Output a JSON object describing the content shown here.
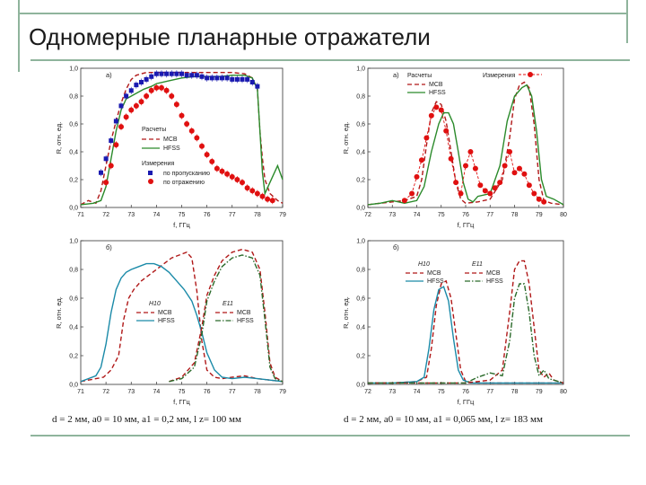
{
  "slide": {
    "title": "Одномерные планарные отражатели",
    "caption_left": "d = 2 мм, a0 = 10 мм, a1 = 0,2 мм, l z= 100 мм",
    "caption_right": "d = 2 мм, a0 = 10 мм, a1 = 0,065 мм, l z= 183 мм"
  },
  "colors": {
    "frame": "#8fb49c",
    "mcb": "#b01818",
    "hfss": "#2a8a2a",
    "meas_trans": "#1a1ab0",
    "meas_refl": "#e01010",
    "hfss_blue": "#1a8aa8",
    "mcb_green_dash": "#2a6a2a"
  },
  "chart_data": [
    {
      "id": "tl",
      "type": "line",
      "panel_label": "a)",
      "xlabel": "f, ГГц",
      "ylabel": "R, отн. ед.",
      "xlim": [
        71,
        79
      ],
      "ylim": [
        0,
        1.0
      ],
      "xticks": [
        "71",
        "72",
        "73",
        "74",
        "75",
        "76",
        "77",
        "78",
        "79"
      ],
      "yticks": [
        "0,0",
        "0,2",
        "0,4",
        "0,6",
        "0,8",
        "1,0"
      ],
      "legend": {
        "calc_title": "Расчеты",
        "calc_items": [
          "MCB",
          "HFSS"
        ],
        "meas_title": "Измерения",
        "meas_items": [
          "по пропусканию",
          "по отражению"
        ]
      },
      "series": [
        {
          "name": "MCB",
          "style": "dash",
          "color": "#b01818",
          "x": [
            71,
            71.3,
            71.6,
            71.8,
            72.0,
            72.2,
            72.4,
            72.6,
            72.8,
            73.0,
            73.2,
            73.4,
            73.6,
            73.8,
            74.0,
            74.5,
            75.0,
            75.5,
            76.0,
            76.5,
            77.0,
            77.5,
            77.8,
            78.0,
            78.1,
            78.2,
            78.3,
            78.5,
            78.8,
            79.0
          ],
          "y": [
            0.02,
            0.05,
            0.03,
            0.12,
            0.3,
            0.48,
            0.62,
            0.75,
            0.85,
            0.92,
            0.95,
            0.96,
            0.97,
            0.97,
            0.97,
            0.97,
            0.97,
            0.97,
            0.97,
            0.97,
            0.97,
            0.96,
            0.93,
            0.85,
            0.55,
            0.35,
            0.2,
            0.1,
            0.05,
            0.03
          ]
        },
        {
          "name": "HFSS",
          "style": "solid",
          "color": "#2a8a2a",
          "x": [
            71,
            71.5,
            71.8,
            72.0,
            72.2,
            72.4,
            72.6,
            72.8,
            73.0,
            73.2,
            73.5,
            73.8,
            74.0,
            74.5,
            75.0,
            75.5,
            76.0,
            76.5,
            77.0,
            77.5,
            77.8,
            78.0,
            78.1,
            78.2,
            78.3,
            78.5,
            78.8,
            79.0
          ],
          "y": [
            0.02,
            0.03,
            0.05,
            0.15,
            0.35,
            0.55,
            0.7,
            0.78,
            0.8,
            0.82,
            0.85,
            0.87,
            0.89,
            0.91,
            0.93,
            0.94,
            0.94,
            0.94,
            0.95,
            0.95,
            0.93,
            0.85,
            0.55,
            0.25,
            0.1,
            0.18,
            0.3,
            0.2
          ]
        },
        {
          "name": "по пропусканию",
          "style": "marker-square",
          "color": "#1a1ab0",
          "x": [
            71.8,
            72.0,
            72.2,
            72.4,
            72.6,
            72.8,
            73.0,
            73.2,
            73.4,
            73.6,
            73.8,
            74.0,
            74.2,
            74.4,
            74.6,
            74.8,
            75.0,
            75.2,
            75.4,
            75.6,
            75.8,
            76.0,
            76.2,
            76.4,
            76.6,
            76.8,
            77.0,
            77.2,
            77.4,
            77.6,
            77.8,
            78.0
          ],
          "y": [
            0.25,
            0.35,
            0.48,
            0.62,
            0.73,
            0.8,
            0.84,
            0.88,
            0.9,
            0.92,
            0.94,
            0.96,
            0.96,
            0.96,
            0.96,
            0.96,
            0.96,
            0.95,
            0.95,
            0.95,
            0.94,
            0.93,
            0.93,
            0.93,
            0.93,
            0.93,
            0.92,
            0.92,
            0.92,
            0.92,
            0.9,
            0.87
          ]
        },
        {
          "name": "по отражению",
          "style": "marker-circle",
          "color": "#e01010",
          "x": [
            72.0,
            72.2,
            72.4,
            72.6,
            72.8,
            73.0,
            73.2,
            73.4,
            73.6,
            73.8,
            74.0,
            74.2,
            74.4,
            74.6,
            74.8,
            75.0,
            75.2,
            75.4,
            75.6,
            75.8,
            76.0,
            76.2,
            76.4,
            76.6,
            76.8,
            77.0,
            77.2,
            77.4,
            77.6,
            77.8,
            78.0,
            78.2,
            78.4,
            78.6
          ],
          "y": [
            0.18,
            0.3,
            0.45,
            0.58,
            0.65,
            0.7,
            0.73,
            0.76,
            0.8,
            0.84,
            0.86,
            0.86,
            0.84,
            0.8,
            0.74,
            0.66,
            0.6,
            0.55,
            0.5,
            0.44,
            0.38,
            0.33,
            0.28,
            0.26,
            0.24,
            0.22,
            0.2,
            0.18,
            0.14,
            0.12,
            0.1,
            0.08,
            0.06,
            0.05
          ]
        }
      ]
    },
    {
      "id": "tr",
      "type": "line",
      "panel_label": "a)",
      "xlabel": "f, ГГц",
      "ylabel": "R, отн. ед.",
      "xlim": [
        72,
        80
      ],
      "ylim": [
        0,
        1.0
      ],
      "xticks": [
        "72",
        "73",
        "74",
        "75",
        "76",
        "77",
        "78",
        "79",
        "80"
      ],
      "yticks": [
        "0,0",
        "0,2",
        "0,4",
        "0,6",
        "0,8",
        "1,0"
      ],
      "legend": {
        "calc_title": "Расчеты",
        "calc_items": [
          "MCB",
          "HFSS"
        ],
        "meas_title": "Измерения"
      },
      "series": [
        {
          "name": "MCB",
          "style": "dash",
          "color": "#b01818",
          "x": [
            72,
            72.5,
            73,
            73.5,
            74,
            74.2,
            74.4,
            74.6,
            74.8,
            75.0,
            75.2,
            75.4,
            75.6,
            75.8,
            76.0,
            76.5,
            77.0,
            77.5,
            77.8,
            78.0,
            78.2,
            78.4,
            78.6,
            78.8,
            79.0,
            79.2,
            79.5,
            80.0
          ],
          "y": [
            0.02,
            0.03,
            0.04,
            0.05,
            0.08,
            0.2,
            0.45,
            0.68,
            0.76,
            0.74,
            0.62,
            0.4,
            0.18,
            0.06,
            0.03,
            0.04,
            0.06,
            0.2,
            0.5,
            0.78,
            0.88,
            0.9,
            0.86,
            0.6,
            0.2,
            0.05,
            0.03,
            0.02
          ]
        },
        {
          "name": "HFSS",
          "style": "solid",
          "color": "#2a8a2a",
          "x": [
            72,
            72.5,
            73,
            73.5,
            74,
            74.3,
            74.6,
            74.9,
            75.1,
            75.3,
            75.5,
            75.7,
            75.9,
            76.1,
            76.3,
            76.5,
            77.0,
            77.4,
            77.7,
            78.0,
            78.3,
            78.5,
            78.7,
            78.9,
            79.1,
            79.3,
            79.6,
            80.0
          ],
          "y": [
            0.02,
            0.03,
            0.05,
            0.03,
            0.05,
            0.15,
            0.4,
            0.6,
            0.68,
            0.68,
            0.6,
            0.4,
            0.18,
            0.06,
            0.04,
            0.08,
            0.1,
            0.3,
            0.62,
            0.8,
            0.86,
            0.88,
            0.8,
            0.55,
            0.2,
            0.08,
            0.06,
            0.02
          ]
        },
        {
          "name": "Измерения",
          "style": "marker-circle-line",
          "color": "#e01010",
          "x": [
            73.5,
            73.8,
            74.0,
            74.2,
            74.4,
            74.6,
            74.8,
            75.0,
            75.2,
            75.4,
            75.6,
            75.8,
            76.0,
            76.2,
            76.4,
            76.6,
            76.8,
            77.0,
            77.2,
            77.4,
            77.6,
            77.8,
            78.0,
            78.2,
            78.4,
            78.6,
            78.8,
            79.0,
            79.2
          ],
          "y": [
            0.05,
            0.1,
            0.22,
            0.34,
            0.5,
            0.66,
            0.72,
            0.7,
            0.55,
            0.35,
            0.18,
            0.1,
            0.3,
            0.4,
            0.28,
            0.16,
            0.12,
            0.1,
            0.14,
            0.18,
            0.3,
            0.4,
            0.25,
            0.28,
            0.24,
            0.16,
            0.1,
            0.06,
            0.04
          ]
        }
      ]
    },
    {
      "id": "bl",
      "type": "line",
      "panel_label": "б)",
      "xlabel": "f, ГГц",
      "ylabel": "R, отн. ед.",
      "xlim": [
        71,
        79
      ],
      "ylim": [
        0,
        1.0
      ],
      "xticks": [
        "71",
        "72",
        "73",
        "74",
        "75",
        "76",
        "77",
        "78",
        "79"
      ],
      "yticks": [
        "0,0",
        "0,2",
        "0,4",
        "0,6",
        "0,8",
        "1,0"
      ],
      "legend": {
        "left_title": "H10",
        "left_items": [
          "MCB",
          "HFSS"
        ],
        "right_title": "E11",
        "right_items": [
          "MCB",
          "HFSS"
        ]
      },
      "series": [
        {
          "name": "MCB",
          "group": "H10",
          "style": "dash",
          "color": "#b01818",
          "x": [
            71,
            71.3,
            71.6,
            71.9,
            72.2,
            72.5,
            72.7,
            72.9,
            73.1,
            73.4,
            73.7,
            74.0,
            74.3,
            74.6,
            74.9,
            75.2,
            75.4,
            75.6,
            75.8,
            76.0,
            76.3,
            76.6,
            77.0,
            77.5,
            78.0,
            78.5,
            79.0
          ],
          "y": [
            0.02,
            0.03,
            0.04,
            0.05,
            0.1,
            0.2,
            0.45,
            0.6,
            0.66,
            0.72,
            0.76,
            0.8,
            0.84,
            0.88,
            0.9,
            0.92,
            0.88,
            0.65,
            0.3,
            0.1,
            0.05,
            0.04,
            0.05,
            0.06,
            0.04,
            0.03,
            0.02
          ]
        },
        {
          "name": "HFSS",
          "group": "H10",
          "style": "solid",
          "color": "#1a8aa8",
          "x": [
            71,
            71.3,
            71.6,
            71.8,
            72.0,
            72.2,
            72.4,
            72.6,
            72.8,
            73.0,
            73.3,
            73.6,
            73.9,
            74.2,
            74.5,
            74.8,
            75.1,
            75.4,
            75.6,
            75.8,
            76.0,
            76.3,
            76.6,
            77.0,
            77.5,
            78.0,
            78.5,
            79.0
          ],
          "y": [
            0.02,
            0.04,
            0.06,
            0.12,
            0.28,
            0.5,
            0.66,
            0.74,
            0.78,
            0.8,
            0.82,
            0.84,
            0.84,
            0.82,
            0.78,
            0.72,
            0.66,
            0.58,
            0.48,
            0.36,
            0.22,
            0.1,
            0.05,
            0.04,
            0.05,
            0.04,
            0.03,
            0.02
          ]
        },
        {
          "name": "MCB",
          "group": "E11",
          "style": "dash",
          "color": "#b01818",
          "x": [
            74.5,
            75.0,
            75.5,
            75.8,
            76.0,
            76.3,
            76.6,
            77.0,
            77.4,
            77.8,
            78.1,
            78.3,
            78.5,
            78.7,
            79.0
          ],
          "y": [
            0.02,
            0.05,
            0.15,
            0.4,
            0.62,
            0.76,
            0.86,
            0.92,
            0.94,
            0.92,
            0.8,
            0.5,
            0.15,
            0.05,
            0.02
          ]
        },
        {
          "name": "HFSS",
          "group": "E11",
          "style": "dashdot",
          "color": "#2a6a2a",
          "x": [
            74.5,
            75.0,
            75.5,
            75.8,
            76.0,
            76.3,
            76.6,
            77.0,
            77.4,
            77.8,
            78.1,
            78.3,
            78.5,
            78.7,
            79.0
          ],
          "y": [
            0.02,
            0.04,
            0.12,
            0.35,
            0.58,
            0.72,
            0.82,
            0.88,
            0.9,
            0.88,
            0.76,
            0.45,
            0.12,
            0.04,
            0.02
          ]
        }
      ]
    },
    {
      "id": "br",
      "type": "line",
      "panel_label": "б)",
      "xlabel": "f, ГГц",
      "ylabel": "R, отн. ед.",
      "xlim": [
        72,
        80
      ],
      "ylim": [
        0,
        1.0
      ],
      "xticks": [
        "72",
        "73",
        "74",
        "75",
        "76",
        "77",
        "78",
        "79",
        "80"
      ],
      "yticks": [
        "0,0",
        "0,2",
        "0,4",
        "0,6",
        "0,8",
        "1,0"
      ],
      "legend": {
        "left_title": "H10",
        "left_items": [
          "MCB",
          "HFSS"
        ],
        "right_title": "E11",
        "right_items": [
          "MCB",
          "HFSS"
        ]
      },
      "series": [
        {
          "name": "MCB",
          "group": "H10",
          "style": "dash",
          "color": "#b01818",
          "x": [
            72,
            73,
            74,
            74.4,
            74.6,
            74.8,
            75.0,
            75.2,
            75.4,
            75.6,
            75.8,
            76.0,
            76.5,
            77,
            78,
            79,
            80
          ],
          "y": [
            0.01,
            0.01,
            0.02,
            0.05,
            0.25,
            0.55,
            0.7,
            0.72,
            0.6,
            0.35,
            0.1,
            0.02,
            0.01,
            0.01,
            0.01,
            0.01,
            0.01
          ]
        },
        {
          "name": "HFSS",
          "group": "H10",
          "style": "solid",
          "color": "#1a8aa8",
          "x": [
            72,
            73,
            74,
            74.3,
            74.5,
            74.7,
            74.9,
            75.1,
            75.3,
            75.5,
            75.7,
            75.9,
            76.2,
            77,
            78,
            79,
            80
          ],
          "y": [
            0.01,
            0.01,
            0.02,
            0.05,
            0.25,
            0.52,
            0.66,
            0.68,
            0.58,
            0.32,
            0.1,
            0.03,
            0.01,
            0.01,
            0.01,
            0.01,
            0.01
          ]
        },
        {
          "name": "MCB",
          "group": "E11",
          "style": "dash",
          "color": "#b01818",
          "x": [
            72,
            74,
            76,
            77.0,
            77.5,
            77.8,
            78.0,
            78.2,
            78.4,
            78.6,
            78.8,
            79.0,
            79.2,
            79.4,
            79.6,
            80
          ],
          "y": [
            0.01,
            0.01,
            0.01,
            0.03,
            0.1,
            0.5,
            0.8,
            0.86,
            0.86,
            0.7,
            0.4,
            0.1,
            0.05,
            0.08,
            0.03,
            0.01
          ]
        },
        {
          "name": "HFSS",
          "group": "E11",
          "style": "dashdot",
          "color": "#2a6a2a",
          "x": [
            72,
            74,
            76,
            76.5,
            77.0,
            77.5,
            77.8,
            78.0,
            78.2,
            78.4,
            78.6,
            78.8,
            79.0,
            79.2,
            79.4,
            80
          ],
          "y": [
            0.01,
            0.01,
            0.01,
            0.05,
            0.08,
            0.06,
            0.3,
            0.6,
            0.7,
            0.7,
            0.5,
            0.2,
            0.06,
            0.1,
            0.04,
            0.01
          ]
        }
      ]
    }
  ]
}
